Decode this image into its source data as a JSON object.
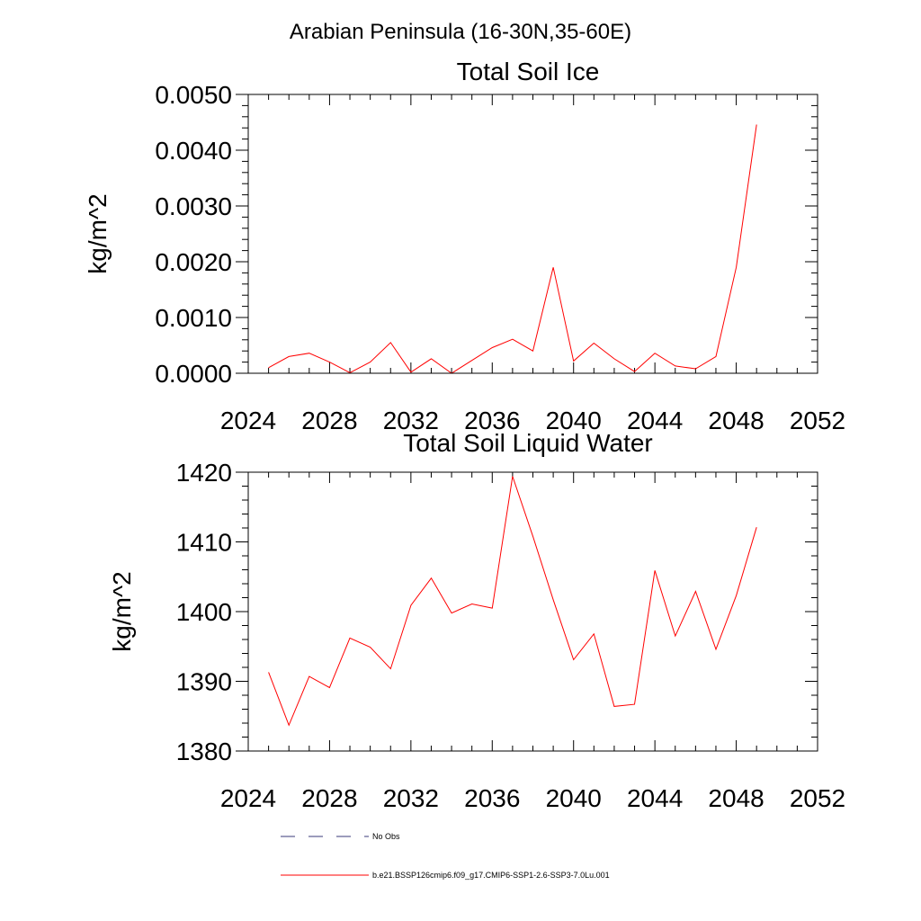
{
  "figure_title": "Arabian Peninsula (16-30N,35-60E)",
  "chart_data": [
    {
      "type": "line",
      "title": "Total Soil Ice",
      "xlabel": "",
      "ylabel": "kg/m^2",
      "xlim": [
        2024,
        2052
      ],
      "ylim": [
        0,
        0.005
      ],
      "x_ticks": [
        2024,
        2028,
        2032,
        2036,
        2040,
        2044,
        2048,
        2052
      ],
      "x_tick_labels": [
        "2024",
        "2028",
        "2032",
        "2036",
        "2040",
        "2044",
        "2048",
        "2052"
      ],
      "y_ticks": [
        0,
        0.001,
        0.002,
        0.003,
        0.004,
        0.005
      ],
      "y_tick_labels": [
        "0.0000",
        "0.0010",
        "0.0020",
        "0.0030",
        "0.0040",
        "0.0050"
      ],
      "grid": false,
      "series": [
        {
          "name": "b.e21.BSSP126cmip6.f09_g17.CMIP6-SSP1-2.6-SSP3-7.0Lu.001",
          "color": "#ff0000",
          "x": [
            2025,
            2026,
            2027,
            2028,
            2029,
            2030,
            2031,
            2032,
            2033,
            2034,
            2035,
            2036,
            2037,
            2038,
            2039,
            2040,
            2041,
            2042,
            2043,
            2044,
            2045,
            2046,
            2047,
            2048,
            2049
          ],
          "y": [
            0.0001,
            0.0003,
            0.00036,
            0.0002,
            1e-05,
            0.0002,
            0.00055,
            2e-05,
            0.00026,
            0.0,
            0.00023,
            0.00046,
            0.00061,
            0.0004,
            0.0019,
            0.00022,
            0.00054,
            0.00026,
            3e-05,
            0.00036,
            0.00013,
            8e-05,
            0.0003,
            0.0019,
            0.00446
          ]
        }
      ]
    },
    {
      "type": "line",
      "title": "Total Soil Liquid Water",
      "xlabel": "",
      "ylabel": "kg/m^2",
      "xlim": [
        2024,
        2052
      ],
      "ylim": [
        1380,
        1420
      ],
      "x_ticks": [
        2024,
        2028,
        2032,
        2036,
        2040,
        2044,
        2048,
        2052
      ],
      "x_tick_labels": [
        "2024",
        "2028",
        "2032",
        "2036",
        "2040",
        "2044",
        "2048",
        "2052"
      ],
      "y_ticks": [
        1380,
        1390,
        1400,
        1410,
        1420
      ],
      "y_tick_labels": [
        "1380",
        "1390",
        "1400",
        "1410",
        "1420"
      ],
      "grid": false,
      "series": [
        {
          "name": "b.e21.BSSP126cmip6.f09_g17.CMIP6-SSP1-2.6-SSP3-7.0Lu.001",
          "color": "#ff0000",
          "x": [
            2025,
            2026,
            2027,
            2028,
            2029,
            2030,
            2031,
            2032,
            2033,
            2034,
            2035,
            2036,
            2037,
            2038,
            2039,
            2040,
            2041,
            2042,
            2043,
            2044,
            2045,
            2046,
            2047,
            2048,
            2049
          ],
          "y": [
            1391.3,
            1383.7,
            1390.7,
            1389.1,
            1396.2,
            1394.9,
            1391.8,
            1400.9,
            1404.8,
            1399.8,
            1401.1,
            1400.5,
            1419.4,
            1410.8,
            1401.7,
            1393.1,
            1396.8,
            1386.4,
            1386.7,
            1405.9,
            1396.5,
            1402.9,
            1394.6,
            1402.3,
            1412.1
          ]
        }
      ]
    }
  ],
  "legend": [
    {
      "label": "No Obs",
      "color": "#3a3a7a",
      "style": "dashed"
    },
    {
      "label": "b.e21.BSSP126cmip6.f09_g17.CMIP6-SSP1-2.6-SSP3-7.0Lu.001",
      "color": "#ff0000",
      "style": "solid"
    }
  ]
}
